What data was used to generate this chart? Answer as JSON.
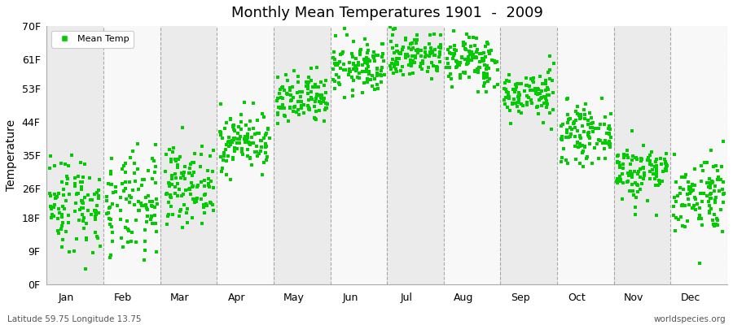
{
  "title": "Monthly Mean Temperatures 1901  -  2009",
  "ylabel": "Temperature",
  "subtitle_left": "Latitude 59.75 Longitude 13.75",
  "subtitle_right": "worldspecies.org",
  "legend_label": "Mean Temp",
  "dot_color": "#00CC00",
  "years": 109,
  "monthly_means_C": [
    -5.5,
    -6.2,
    -2.8,
    3.8,
    9.8,
    14.8,
    16.8,
    15.8,
    10.8,
    4.8,
    -0.8,
    -4.2
  ],
  "monthly_stds_C": [
    3.8,
    4.0,
    2.8,
    2.2,
    2.0,
    2.0,
    1.8,
    2.0,
    1.8,
    2.0,
    2.2,
    3.0
  ],
  "ytick_labels": [
    "0F",
    "9F",
    "18F",
    "26F",
    "35F",
    "44F",
    "53F",
    "61F",
    "70F"
  ],
  "ytick_values_F": [
    0,
    9,
    18,
    26,
    35,
    44,
    53,
    61,
    70
  ],
  "ylim_F": [
    0,
    70
  ],
  "background_colors": [
    "#ebebeb",
    "#f8f8f8"
  ],
  "grid_color": "#777777",
  "fig_bg_color": "#ffffff",
  "marker_size": 5,
  "month_names": [
    "Jan",
    "Feb",
    "Mar",
    "Apr",
    "May",
    "Jun",
    "Jul",
    "Aug",
    "Sep",
    "Oct",
    "Nov",
    "Dec"
  ]
}
